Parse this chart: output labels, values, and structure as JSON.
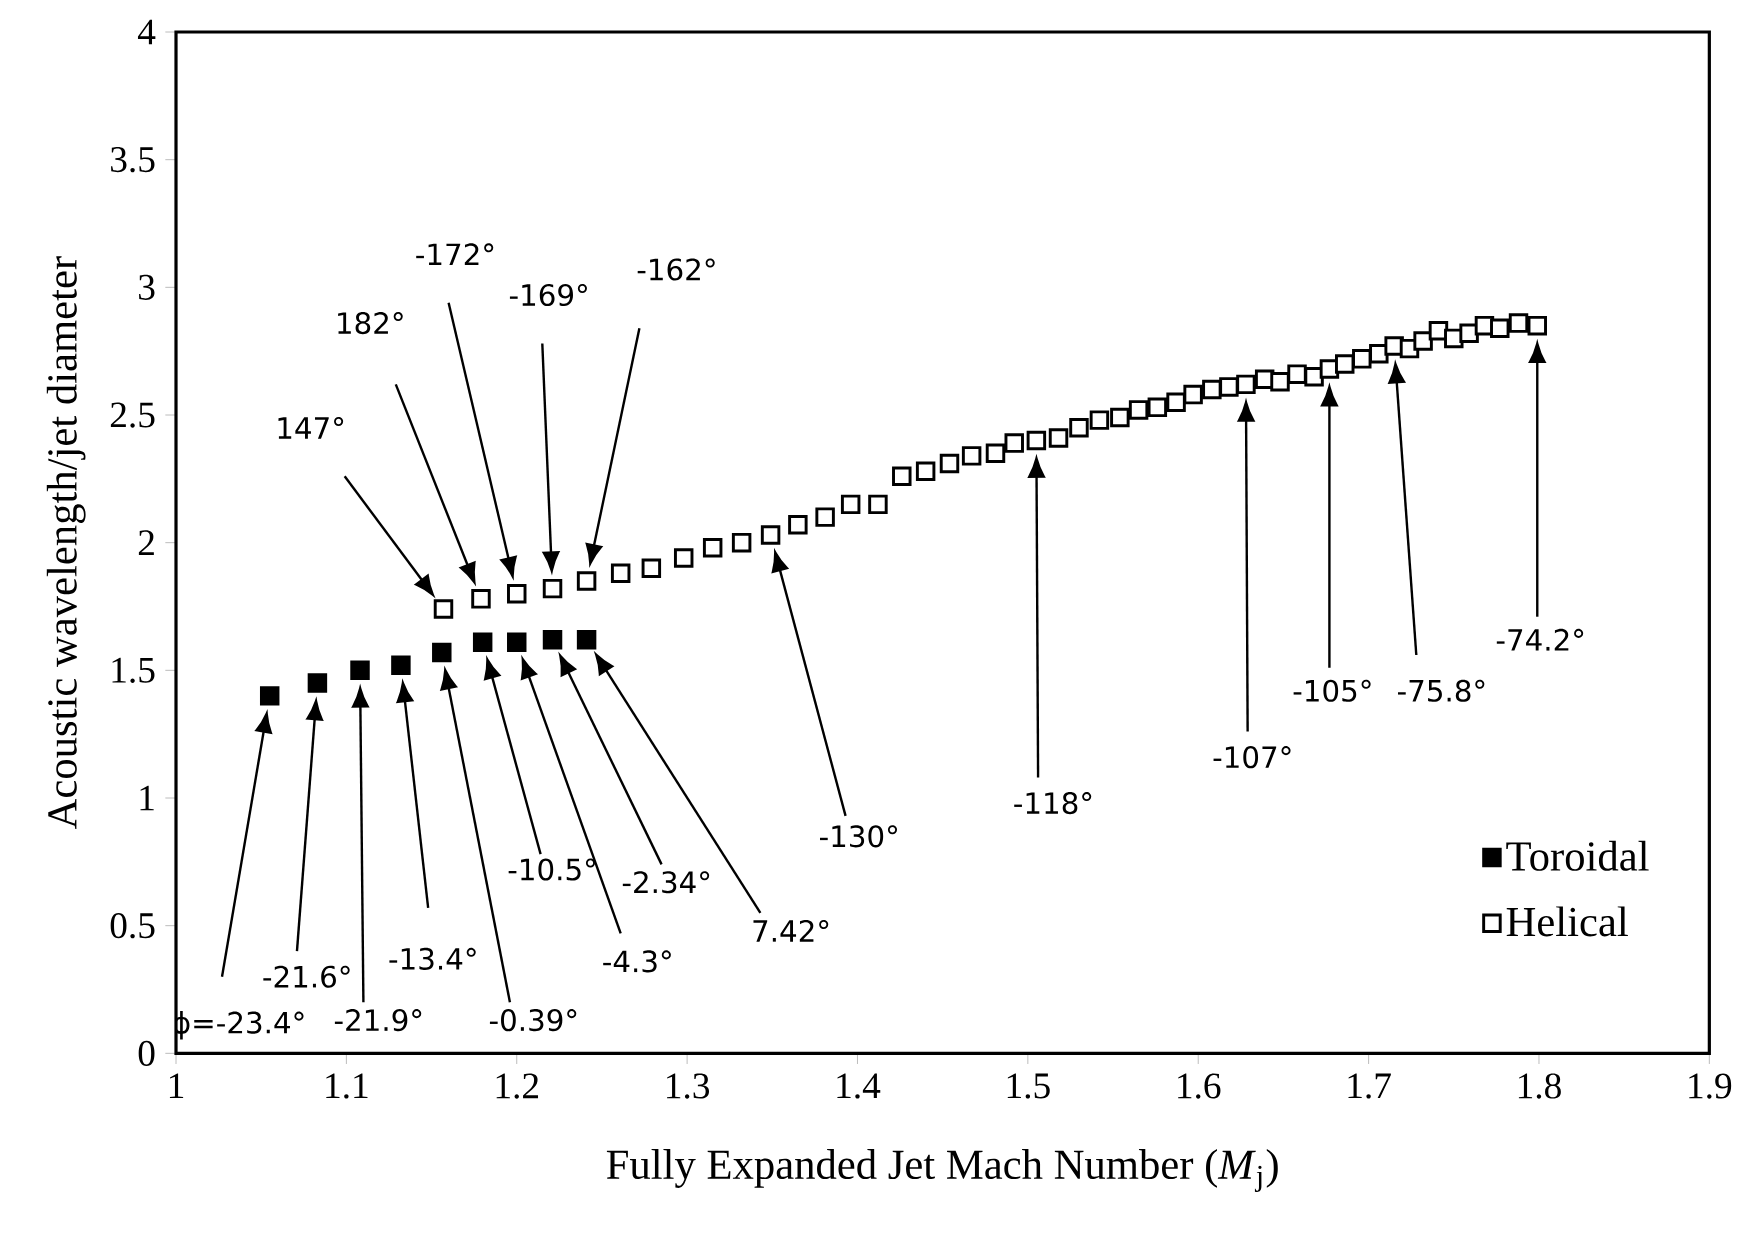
{
  "chart_data": {
    "type": "scatter",
    "xlabel": "Fully Expanded Jet Mach Number (*M*$_{j}$)",
    "ylabel": "Acoustic wavelength/jet diameter",
    "xlim": [
      1,
      1.9
    ],
    "ylim": [
      0,
      4
    ],
    "xticks": [
      1,
      1.1,
      1.2,
      1.3,
      1.4,
      1.5,
      1.6,
      1.7,
      1.8,
      1.9
    ],
    "yticks": [
      0,
      0.5,
      1,
      1.5,
      2,
      2.5,
      3,
      3.5,
      4
    ],
    "marker": "square",
    "legend": "bottom right",
    "grid": false,
    "series": [
      {
        "name": "Toroidal",
        "color": "#000000",
        "x": [
          1.055,
          1.083,
          1.108,
          1.132,
          1.156,
          1.18,
          1.2,
          1.221,
          1.241
        ],
        "values": [
          1.4,
          1.45,
          1.5,
          1.52,
          1.57,
          1.61,
          1.61,
          1.62,
          1.62
        ]
      },
      {
        "name": "Helical",
        "color": "#000000",
        "x": [
          1.157,
          1.179,
          1.2,
          1.221,
          1.241,
          1.261,
          1.279,
          1.298,
          1.315,
          1.332,
          1.349,
          1.365,
          1.381,
          1.396,
          1.412,
          1.426,
          1.44,
          1.454,
          1.467,
          1.481,
          1.492,
          1.505,
          1.518,
          1.53,
          1.542,
          1.554,
          1.565,
          1.576,
          1.587,
          1.597,
          1.608,
          1.618,
          1.628,
          1.639,
          1.648,
          1.658,
          1.668,
          1.677,
          1.686,
          1.696,
          1.706,
          1.715,
          1.724,
          1.732,
          1.741,
          1.75,
          1.759,
          1.768,
          1.777,
          1.788,
          1.799
        ],
        "values": [
          1.74,
          1.78,
          1.8,
          1.82,
          1.85,
          1.88,
          1.9,
          1.94,
          1.98,
          2.0,
          2.03,
          2.07,
          2.1,
          2.15,
          2.15,
          2.26,
          2.28,
          2.31,
          2.34,
          2.35,
          2.39,
          2.4,
          2.41,
          2.45,
          2.48,
          2.49,
          2.52,
          2.53,
          2.55,
          2.58,
          2.6,
          2.61,
          2.62,
          2.64,
          2.63,
          2.66,
          2.65,
          2.68,
          2.7,
          2.72,
          2.74,
          2.77,
          2.76,
          2.79,
          2.83,
          2.8,
          2.82,
          2.85,
          2.84,
          2.86,
          2.85
        ]
      }
    ],
    "annotations": [
      "ϕ=-23.4°",
      "-21.6°",
      "-21.9°",
      "-13.4°",
      "-0.39°",
      "-10.5°",
      "-4.3°",
      "-2.34°",
      "7.42°",
      "147°",
      "182°",
      "-172°",
      "-169°",
      "-162°",
      "-130°",
      "-118°",
      "-107°",
      "-105°",
      "-75.8°",
      "-74.2°"
    ]
  }
}
